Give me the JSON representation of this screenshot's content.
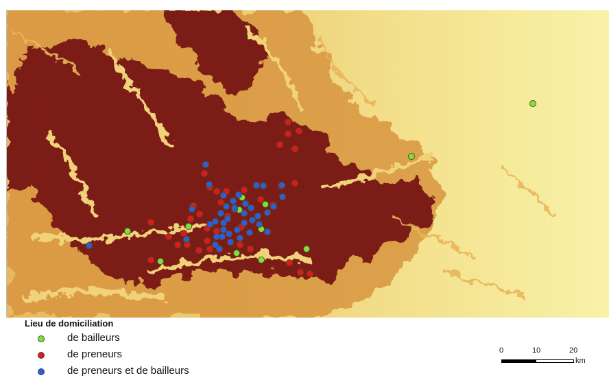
{
  "legend": {
    "title": "Lieu de domiciliation",
    "items": [
      {
        "label": "de bailleurs",
        "color": "#7ee03b"
      },
      {
        "label": "de preneurs",
        "color": "#e01818"
      },
      {
        "label": "de preneurs et de bailleurs",
        "color": "#2a5fd8"
      }
    ]
  },
  "scale": {
    "ticks": [
      "0",
      "10",
      "20"
    ],
    "unit": "km"
  },
  "map": {
    "colors": {
      "low": "#f6f2a0",
      "mid": "#e6c060",
      "high": "#7b1e12"
    }
  }
}
